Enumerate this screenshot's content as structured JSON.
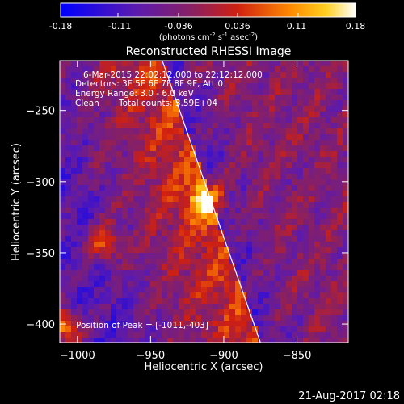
{
  "colorbar": {
    "tick_labels": [
      "-0.18",
      "-0.11",
      "-0.036",
      "0.036",
      "0.11",
      "0.18"
    ],
    "ticks": [
      -0.18,
      -0.11,
      -0.036,
      0.036,
      0.11,
      0.18
    ],
    "range": [
      -0.18,
      0.18
    ],
    "units_main": "(photons cm",
    "units_exp1": "-2",
    "units_s": " s",
    "units_exp2": "-1",
    "units_asec": " asec",
    "units_exp3": "-2",
    "units_close": ")"
  },
  "chart_data": {
    "type": "heatmap",
    "title": "Reconstructed RHESSI Image",
    "xlabel": "Heliocentric X (arcsec)",
    "ylabel": "Heliocentric Y (arcsec)",
    "xlim": [
      -1012,
      -815
    ],
    "ylim": [
      -413,
      -215
    ],
    "x_ticks": [
      -1000,
      -950,
      -900,
      -850
    ],
    "y_ticks": [
      -400,
      -350,
      -300,
      -250
    ],
    "x_tick_labels": [
      "−1000",
      "−950",
      "−900",
      "−850"
    ],
    "y_tick_labels": [
      "−400",
      "−350",
      "−300",
      "−250"
    ],
    "sources": [
      {
        "x": -911,
        "y": -312,
        "value": 0.18
      },
      {
        "x": -983,
        "y": -343,
        "value": 0.14
      },
      {
        "x": -1010,
        "y": -403,
        "value": 0.18
      }
    ],
    "limb_points": [
      [
        -942,
        -215
      ],
      [
        -875,
        -413
      ]
    ],
    "annotations": {
      "time_range": "6-Mar-2015 22:02:12.000 to 22:12:12.000",
      "detectors": "Detectors: 3F 5F 6F 7F 8F 9F, Att 0",
      "energy": "Energy Range: 3.0 - 6.0 keV",
      "method": "Clean",
      "counts": "Total counts: 3.59E+04",
      "peak": "Position of Peak = [-1011,-403]"
    }
  },
  "footer": {
    "timestamp": "21-Aug-2017 02:18"
  }
}
